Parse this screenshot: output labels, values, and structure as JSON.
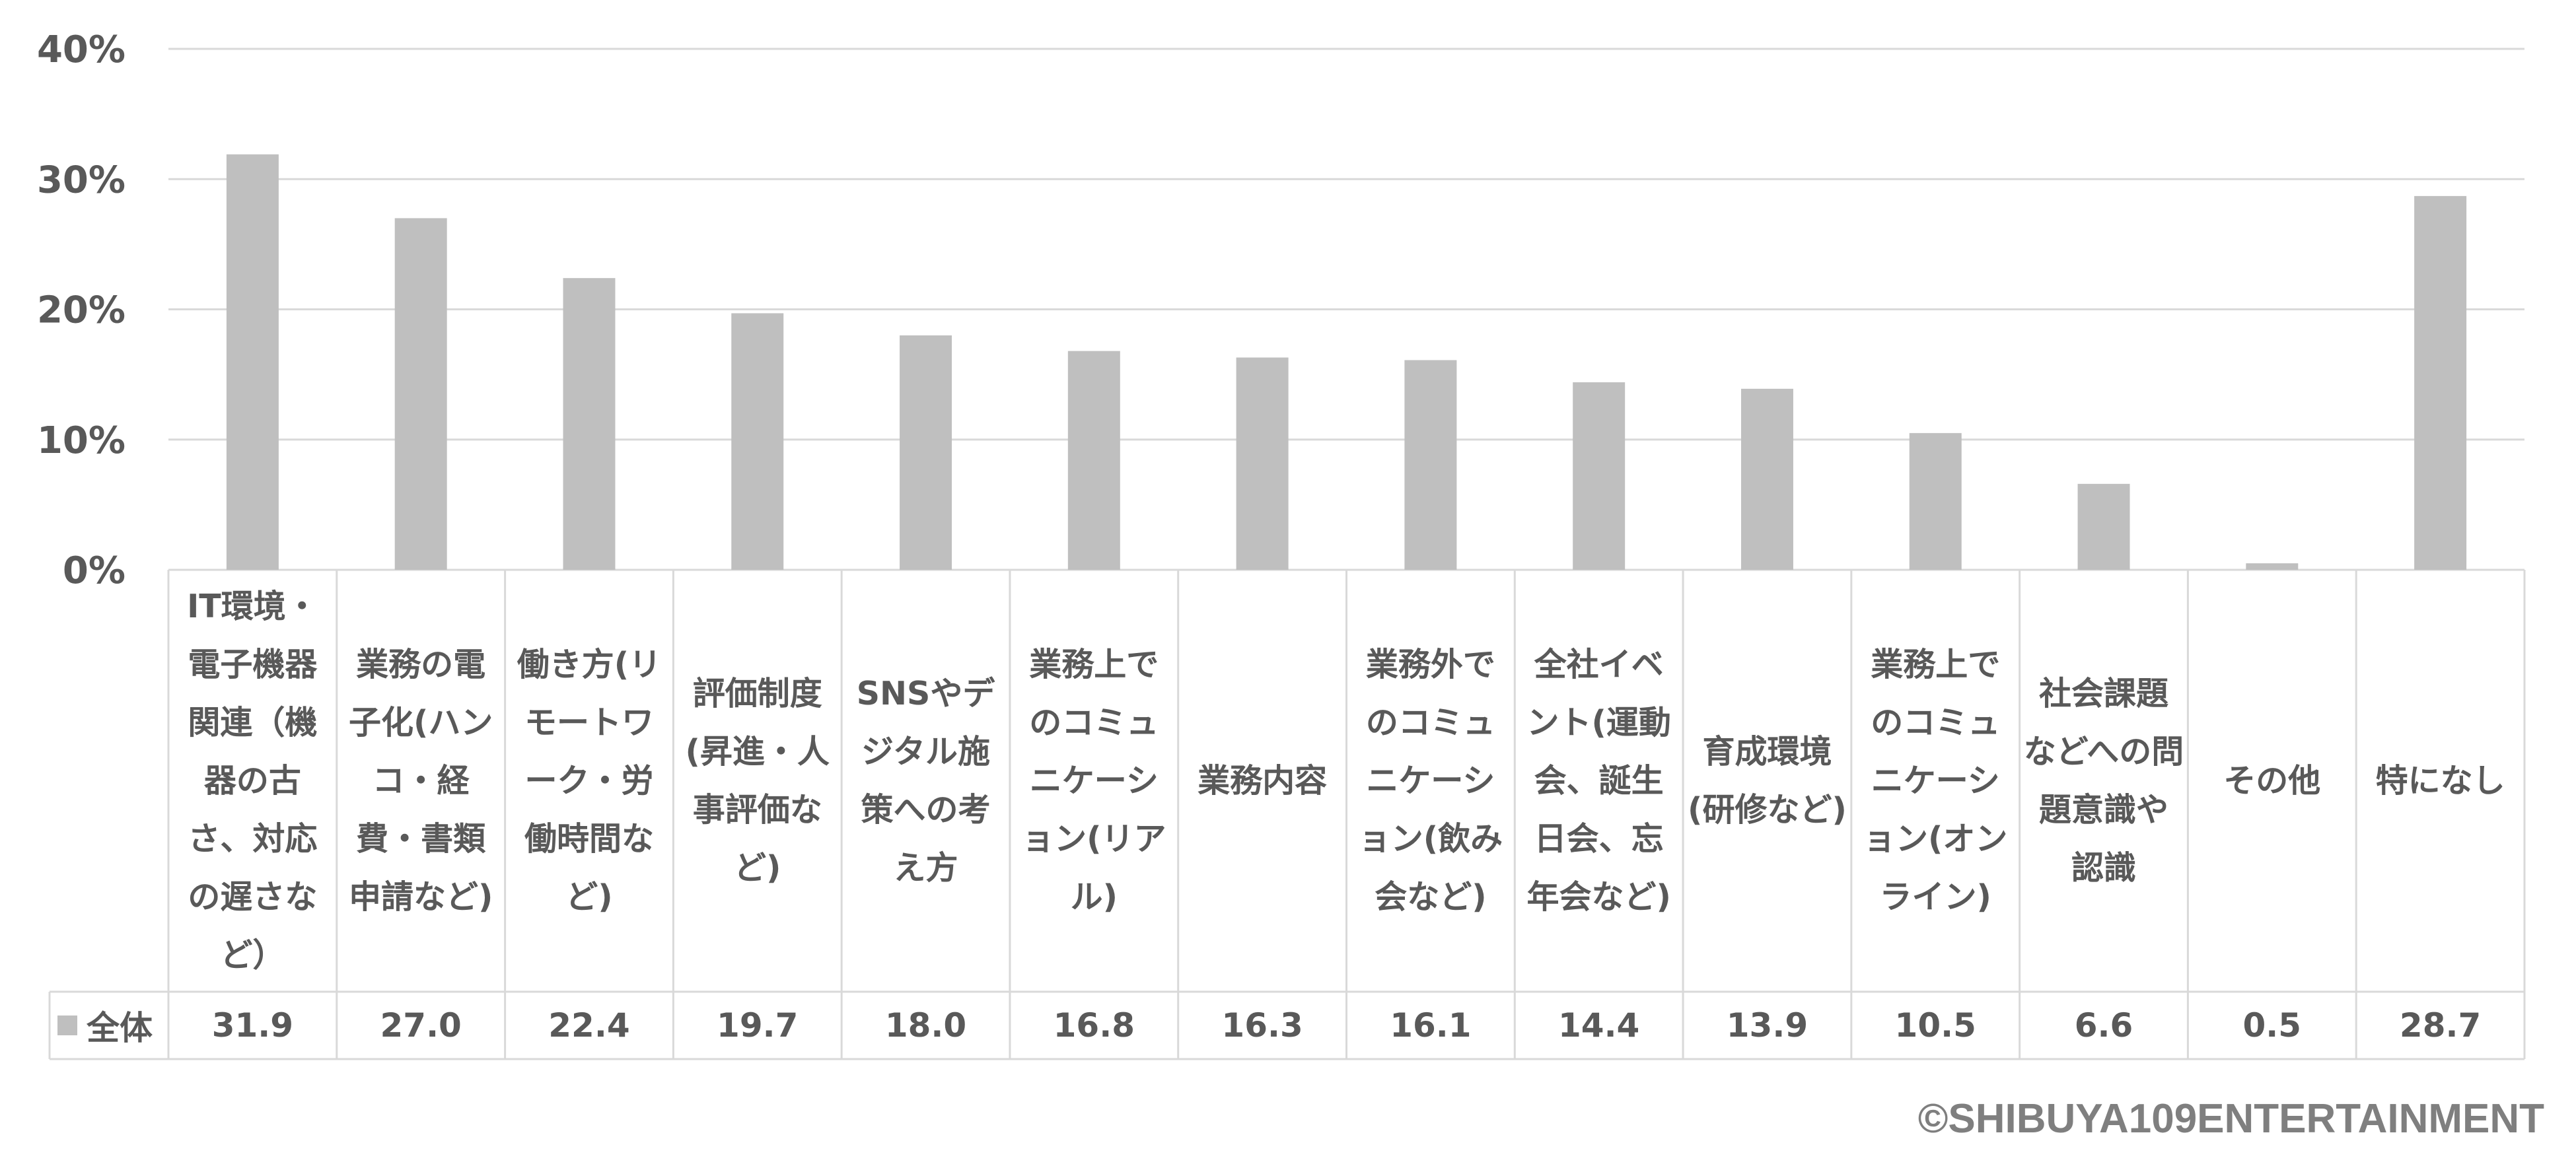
{
  "chart_data": {
    "type": "bar",
    "categories": [
      "IT環境・電子機器関連（機器の古さ、対応の遅さなど）",
      "業務の電子化(ハンコ・経費・書類申請など)",
      "働き方(リモートワーク・労働時間など)",
      "評価制度(昇進・人事評価など)",
      "SNSやデジタル施策への考え方",
      "業務上でのコミュニケーション(リアル)",
      "業務内容",
      "業務外でのコミュニケーション(飲み会など)",
      "全社イベント(運動会、誕生日会、忘年会など)",
      "育成環境(研修など)",
      "業務上でのコミュニケーション(オンライン)",
      "社会課題などへの問題意識や認識",
      "その他",
      "特になし"
    ],
    "series": [
      {
        "name": "全体",
        "values": [
          31.9,
          27.0,
          22.4,
          19.7,
          18.0,
          16.8,
          16.3,
          16.1,
          14.4,
          13.9,
          10.5,
          6.6,
          0.5,
          28.7
        ],
        "value_labels": [
          "31.9",
          "27.0",
          "22.4",
          "19.7",
          "18.0",
          "16.8",
          "16.3",
          "16.1",
          "14.4",
          "13.9",
          "10.5",
          "6.6",
          "0.5",
          "28.7"
        ]
      }
    ],
    "yticks": [
      "0%",
      "10%",
      "20%",
      "30%",
      "40%"
    ],
    "ylim": [
      0,
      40
    ],
    "grid": true,
    "data_table": true,
    "colors": {
      "bar": "#bfbfbf",
      "grid": "#d9d9d9",
      "text": "#595959"
    }
  },
  "copyright": "©SHIBUYA109ENTERTAINMENT"
}
